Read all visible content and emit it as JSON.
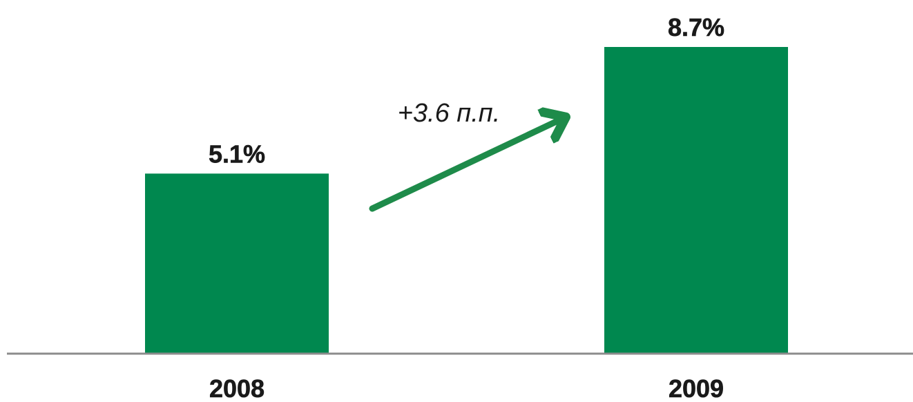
{
  "chart_data": {
    "type": "bar",
    "categories": [
      "2008",
      "2009"
    ],
    "values": [
      5.1,
      8.7
    ],
    "value_labels": [
      "5.1%",
      "8.7%"
    ],
    "unit": "%",
    "title": "",
    "xlabel": "",
    "ylabel": "",
    "ylim": [
      0,
      8.7
    ],
    "grid": false,
    "legend": "none",
    "bar_color": "#00884F",
    "axis_color": "#8C8C8C",
    "annotation": {
      "text": "+3.6 п.п.",
      "arrow_color": "#1E8B4A",
      "from_category": "2008",
      "to_category": "2009"
    }
  }
}
